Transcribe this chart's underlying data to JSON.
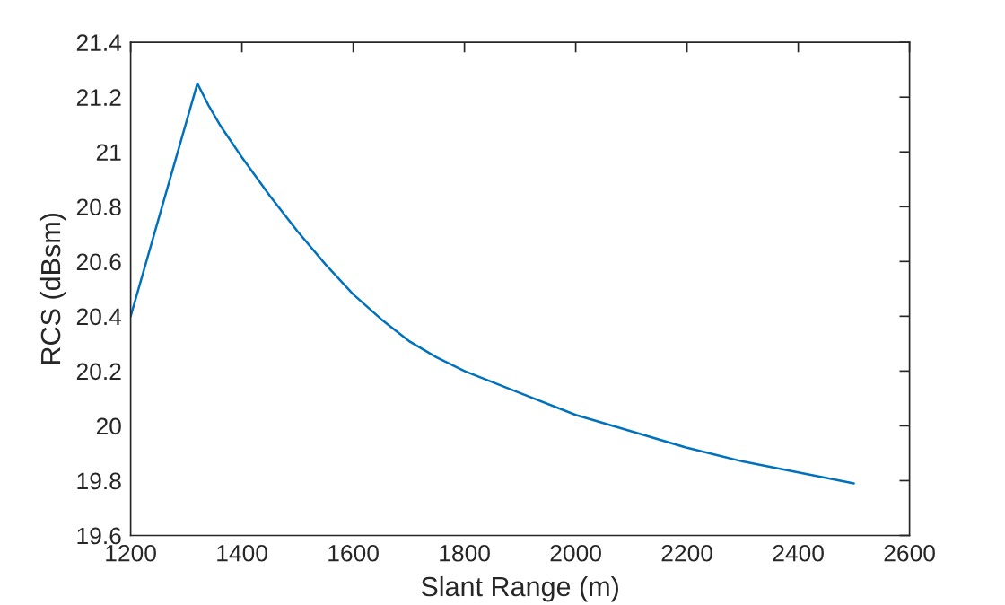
{
  "chart_data": {
    "type": "line",
    "xlabel": "Slant Range (m)",
    "ylabel": "RCS (dBsm)",
    "x": [
      1200,
      1320,
      1340,
      1360,
      1380,
      1400,
      1450,
      1500,
      1550,
      1600,
      1650,
      1700,
      1750,
      1800,
      1900,
      2000,
      2100,
      2200,
      2300,
      2400,
      2500
    ],
    "series": [
      {
        "color": "#0072bd",
        "values": [
          20.4,
          21.25,
          21.17,
          21.1,
          21.04,
          20.98,
          20.84,
          20.71,
          20.59,
          20.48,
          20.39,
          20.31,
          20.25,
          20.2,
          20.12,
          20.04,
          19.98,
          19.92,
          19.87,
          19.83,
          19.79
        ]
      }
    ],
    "xlim": [
      1200,
      2600
    ],
    "xticks": [
      1200,
      1400,
      1600,
      1800,
      2000,
      2200,
      2400,
      2600
    ],
    "ylim": [
      19.6,
      21.4
    ],
    "yticks": [
      19.6,
      19.8,
      20,
      20.2,
      20.4,
      20.6,
      20.8,
      21,
      21.2,
      21.4
    ],
    "grid": false,
    "marker": "none",
    "line_style": "solid"
  }
}
